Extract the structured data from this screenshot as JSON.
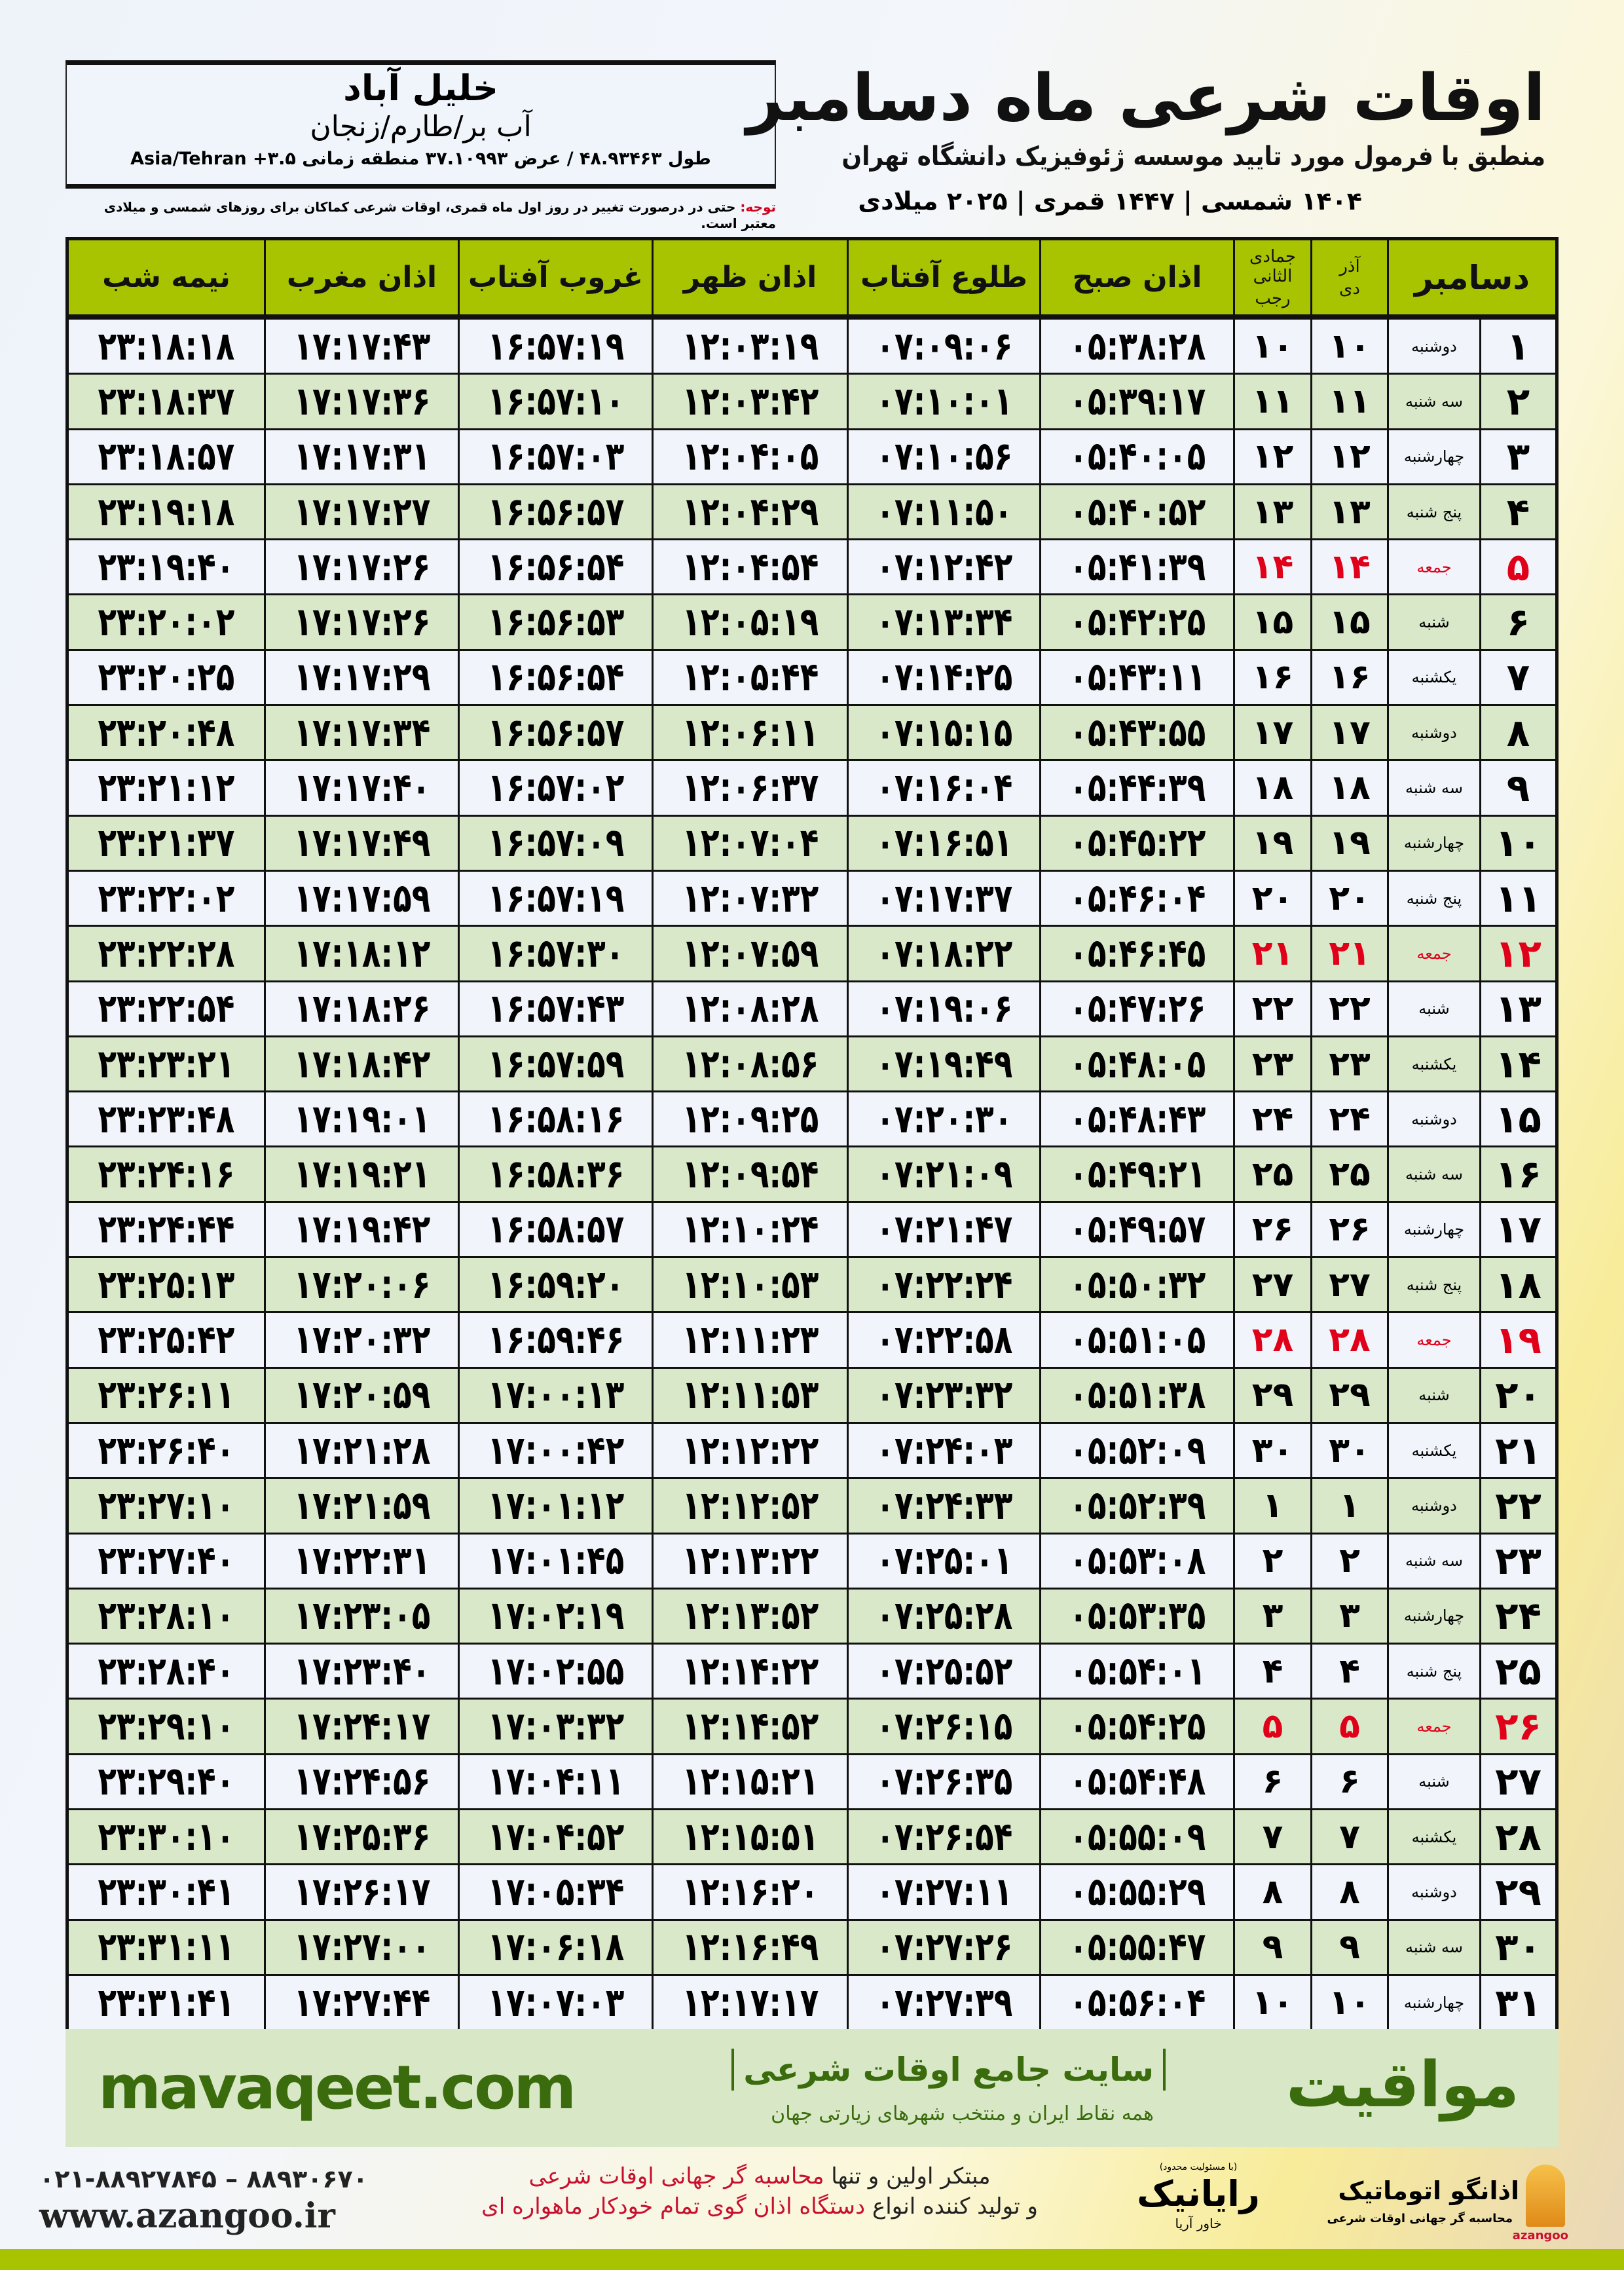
{
  "header": {
    "title": "اوقات شرعی ماه دسامبر",
    "subtitle": "منطبق با فرمول مورد تایید موسسه ژئوفیزیک دانشگاه تهران",
    "dates": "۱۴۰۴ شمسی | ۱۴۴۷ قمری | ۲۰۲۵ میلادی"
  },
  "location": {
    "city": "خلیل آباد",
    "region": "آب بر/طارم/زنجان",
    "coords": "طول ۴۸.۹۳۴۶۳ / عرض ۳۷.۱۰۹۹۳ منطقه زمانی ۳.۵+ Asia/Tehran"
  },
  "note": {
    "label": "توجه:",
    "text": " حتی در درصورت تغییر در روز اول ماه قمری، اوقات شرعی کماکان برای روزهای شمسی و میلادی معتبر است."
  },
  "table": {
    "headers": {
      "month": "دسامبر",
      "solar_1": "آذر",
      "solar_2": "دی",
      "hijri_1": "جمادی الثانی",
      "hijri_2": "رجب",
      "fajr": "اذان صبح",
      "sunrise": "طلوع آفتاب",
      "zuhr": "اذان ظهر",
      "sunset": "غروب آفتاب",
      "maghrib": "اذان مغرب",
      "midnight": "نیمه شب"
    },
    "highlight_color": "#e0001a",
    "rows": [
      [
        "۱",
        "دوشنبه",
        "۱۰",
        "۱۰",
        "۰۵:۳۸:۲۸",
        "۰۷:۰۹:۰۶",
        "۱۲:۰۳:۱۹",
        "۱۶:۵۷:۱۹",
        "۱۷:۱۷:۴۳",
        "۲۳:۱۸:۱۸"
      ],
      [
        "۲",
        "سه شنبه",
        "۱۱",
        "۱۱",
        "۰۵:۳۹:۱۷",
        "۰۷:۱۰:۰۱",
        "۱۲:۰۳:۴۲",
        "۱۶:۵۷:۱۰",
        "۱۷:۱۷:۳۶",
        "۲۳:۱۸:۳۷"
      ],
      [
        "۳",
        "چهارشنبه",
        "۱۲",
        "۱۲",
        "۰۵:۴۰:۰۵",
        "۰۷:۱۰:۵۶",
        "۱۲:۰۴:۰۵",
        "۱۶:۵۷:۰۳",
        "۱۷:۱۷:۳۱",
        "۲۳:۱۸:۵۷"
      ],
      [
        "۴",
        "پنج شنبه",
        "۱۳",
        "۱۳",
        "۰۵:۴۰:۵۲",
        "۰۷:۱۱:۵۰",
        "۱۲:۰۴:۲۹",
        "۱۶:۵۶:۵۷",
        "۱۷:۱۷:۲۷",
        "۲۳:۱۹:۱۸"
      ],
      [
        "۵",
        "جمعه",
        "۱۴",
        "۱۴",
        "۰۵:۴۱:۳۹",
        "۰۷:۱۲:۴۲",
        "۱۲:۰۴:۵۴",
        "۱۶:۵۶:۵۴",
        "۱۷:۱۷:۲۶",
        "۲۳:۱۹:۴۰"
      ],
      [
        "۶",
        "شنبه",
        "۱۵",
        "۱۵",
        "۰۵:۴۲:۲۵",
        "۰۷:۱۳:۳۴",
        "۱۲:۰۵:۱۹",
        "۱۶:۵۶:۵۳",
        "۱۷:۱۷:۲۶",
        "۲۳:۲۰:۰۲"
      ],
      [
        "۷",
        "یکشنبه",
        "۱۶",
        "۱۶",
        "۰۵:۴۳:۱۱",
        "۰۷:۱۴:۲۵",
        "۱۲:۰۵:۴۴",
        "۱۶:۵۶:۵۴",
        "۱۷:۱۷:۲۹",
        "۲۳:۲۰:۲۵"
      ],
      [
        "۸",
        "دوشنبه",
        "۱۷",
        "۱۷",
        "۰۵:۴۳:۵۵",
        "۰۷:۱۵:۱۵",
        "۱۲:۰۶:۱۱",
        "۱۶:۵۶:۵۷",
        "۱۷:۱۷:۳۴",
        "۲۳:۲۰:۴۸"
      ],
      [
        "۹",
        "سه شنبه",
        "۱۸",
        "۱۸",
        "۰۵:۴۴:۳۹",
        "۰۷:۱۶:۰۴",
        "۱۲:۰۶:۳۷",
        "۱۶:۵۷:۰۲",
        "۱۷:۱۷:۴۰",
        "۲۳:۲۱:۱۲"
      ],
      [
        "۱۰",
        "چهارشنبه",
        "۱۹",
        "۱۹",
        "۰۵:۴۵:۲۲",
        "۰۷:۱۶:۵۱",
        "۱۲:۰۷:۰۴",
        "۱۶:۵۷:۰۹",
        "۱۷:۱۷:۴۹",
        "۲۳:۲۱:۳۷"
      ],
      [
        "۱۱",
        "پنج شنبه",
        "۲۰",
        "۲۰",
        "۰۵:۴۶:۰۴",
        "۰۷:۱۷:۳۷",
        "۱۲:۰۷:۳۲",
        "۱۶:۵۷:۱۹",
        "۱۷:۱۷:۵۹",
        "۲۳:۲۲:۰۲"
      ],
      [
        "۱۲",
        "جمعه",
        "۲۱",
        "۲۱",
        "۰۵:۴۶:۴۵",
        "۰۷:۱۸:۲۲",
        "۱۲:۰۷:۵۹",
        "۱۶:۵۷:۳۰",
        "۱۷:۱۸:۱۲",
        "۲۳:۲۲:۲۸"
      ],
      [
        "۱۳",
        "شنبه",
        "۲۲",
        "۲۲",
        "۰۵:۴۷:۲۶",
        "۰۷:۱۹:۰۶",
        "۱۲:۰۸:۲۸",
        "۱۶:۵۷:۴۳",
        "۱۷:۱۸:۲۶",
        "۲۳:۲۲:۵۴"
      ],
      [
        "۱۴",
        "یکشنبه",
        "۲۳",
        "۲۳",
        "۰۵:۴۸:۰۵",
        "۰۷:۱۹:۴۹",
        "۱۲:۰۸:۵۶",
        "۱۶:۵۷:۵۹",
        "۱۷:۱۸:۴۲",
        "۲۳:۲۳:۲۱"
      ],
      [
        "۱۵",
        "دوشنبه",
        "۲۴",
        "۲۴",
        "۰۵:۴۸:۴۳",
        "۰۷:۲۰:۳۰",
        "۱۲:۰۹:۲۵",
        "۱۶:۵۸:۱۶",
        "۱۷:۱۹:۰۱",
        "۲۳:۲۳:۴۸"
      ],
      [
        "۱۶",
        "سه شنبه",
        "۲۵",
        "۲۵",
        "۰۵:۴۹:۲۱",
        "۰۷:۲۱:۰۹",
        "۱۲:۰۹:۵۴",
        "۱۶:۵۸:۳۶",
        "۱۷:۱۹:۲۱",
        "۲۳:۲۴:۱۶"
      ],
      [
        "۱۷",
        "چهارشنبه",
        "۲۶",
        "۲۶",
        "۰۵:۴۹:۵۷",
        "۰۷:۲۱:۴۷",
        "۱۲:۱۰:۲۴",
        "۱۶:۵۸:۵۷",
        "۱۷:۱۹:۴۲",
        "۲۳:۲۴:۴۴"
      ],
      [
        "۱۸",
        "پنج شنبه",
        "۲۷",
        "۲۷",
        "۰۵:۵۰:۳۲",
        "۰۷:۲۲:۲۴",
        "۱۲:۱۰:۵۳",
        "۱۶:۵۹:۲۰",
        "۱۷:۲۰:۰۶",
        "۲۳:۲۵:۱۳"
      ],
      [
        "۱۹",
        "جمعه",
        "۲۸",
        "۲۸",
        "۰۵:۵۱:۰۵",
        "۰۷:۲۲:۵۸",
        "۱۲:۱۱:۲۳",
        "۱۶:۵۹:۴۶",
        "۱۷:۲۰:۳۲",
        "۲۳:۲۵:۴۲"
      ],
      [
        "۲۰",
        "شنبه",
        "۲۹",
        "۲۹",
        "۰۵:۵۱:۳۸",
        "۰۷:۲۳:۳۲",
        "۱۲:۱۱:۵۳",
        "۱۷:۰۰:۱۳",
        "۱۷:۲۰:۵۹",
        "۲۳:۲۶:۱۱"
      ],
      [
        "۲۱",
        "یکشنبه",
        "۳۰",
        "۳۰",
        "۰۵:۵۲:۰۹",
        "۰۷:۲۴:۰۳",
        "۱۲:۱۲:۲۲",
        "۱۷:۰۰:۴۲",
        "۱۷:۲۱:۲۸",
        "۲۳:۲۶:۴۰"
      ],
      [
        "۲۲",
        "دوشنبه",
        "۱",
        "۱",
        "۰۵:۵۲:۳۹",
        "۰۷:۲۴:۳۳",
        "۱۲:۱۲:۵۲",
        "۱۷:۰۱:۱۲",
        "۱۷:۲۱:۵۹",
        "۲۳:۲۷:۱۰"
      ],
      [
        "۲۳",
        "سه شنبه",
        "۲",
        "۲",
        "۰۵:۵۳:۰۸",
        "۰۷:۲۵:۰۱",
        "۱۲:۱۳:۲۲",
        "۱۷:۰۱:۴۵",
        "۱۷:۲۲:۳۱",
        "۲۳:۲۷:۴۰"
      ],
      [
        "۲۴",
        "چهارشنبه",
        "۳",
        "۳",
        "۰۵:۵۳:۳۵",
        "۰۷:۲۵:۲۸",
        "۱۲:۱۳:۵۲",
        "۱۷:۰۲:۱۹",
        "۱۷:۲۳:۰۵",
        "۲۳:۲۸:۱۰"
      ],
      [
        "۲۵",
        "پنج شنبه",
        "۴",
        "۴",
        "۰۵:۵۴:۰۱",
        "۰۷:۲۵:۵۲",
        "۱۲:۱۴:۲۲",
        "۱۷:۰۲:۵۵",
        "۱۷:۲۳:۴۰",
        "۲۳:۲۸:۴۰"
      ],
      [
        "۲۶",
        "جمعه",
        "۵",
        "۵",
        "۰۵:۵۴:۲۵",
        "۰۷:۲۶:۱۵",
        "۱۲:۱۴:۵۲",
        "۱۷:۰۳:۳۲",
        "۱۷:۲۴:۱۷",
        "۲۳:۲۹:۱۰"
      ],
      [
        "۲۷",
        "شنبه",
        "۶",
        "۶",
        "۰۵:۵۴:۴۸",
        "۰۷:۲۶:۳۵",
        "۱۲:۱۵:۲۱",
        "۱۷:۰۴:۱۱",
        "۱۷:۲۴:۵۶",
        "۲۳:۲۹:۴۰"
      ],
      [
        "۲۸",
        "یکشنبه",
        "۷",
        "۷",
        "۰۵:۵۵:۰۹",
        "۰۷:۲۶:۵۴",
        "۱۲:۱۵:۵۱",
        "۱۷:۰۴:۵۲",
        "۱۷:۲۵:۳۶",
        "۲۳:۳۰:۱۰"
      ],
      [
        "۲۹",
        "دوشنبه",
        "۸",
        "۸",
        "۰۵:۵۵:۲۹",
        "۰۷:۲۷:۱۱",
        "۱۲:۱۶:۲۰",
        "۱۷:۰۵:۳۴",
        "۱۷:۲۶:۱۷",
        "۲۳:۳۰:۴۱"
      ],
      [
        "۳۰",
        "سه شنبه",
        "۹",
        "۹",
        "۰۵:۵۵:۴۷",
        "۰۷:۲۷:۲۶",
        "۱۲:۱۶:۴۹",
        "۱۷:۰۶:۱۸",
        "۱۷:۲۷:۰۰",
        "۲۳:۳۱:۱۱"
      ],
      [
        "۳۱",
        "چهارشنبه",
        "۱۰",
        "۱۰",
        "۰۵:۵۶:۰۴",
        "۰۷:۲۷:۳۹",
        "۱۲:۱۷:۱۷",
        "۱۷:۰۷:۰۳",
        "۱۷:۲۷:۴۴",
        "۲۳:۳۱:۴۱"
      ]
    ]
  },
  "band": {
    "logo": "مواقیت",
    "site": "سایت جامع اوقات شرعی",
    "sub": "همه نقاط ایران و منتخب شهرهای زیارتی جهان",
    "url": "mavaqeet.com",
    "color": "#3a6b0c"
  },
  "footer": {
    "phone": "۰۲۱-۸۸۹۲۷۸۴۵ – ۸۸۹۳۰۶۷۰",
    "url": "www.azangoo.ir",
    "line1_a": "مبتکر اولین و تنها ",
    "line1_b": "محاسبه گر جهانی اوقات شرعی",
    "line2_a": "و تولید کننده انواع ",
    "line2_b": "دستگاه اذان گوی تمام خودکار ماهواره ای",
    "rayanik": {
      "note": "(با مسئولیت محدود)",
      "name": "رایانیک",
      "sub": "خاور آریا"
    },
    "azangoo": {
      "name": "اذانگو اتوماتیک",
      "sub": "محاسبه گر جهانی اوقات شرعی",
      "brand": "azangoo"
    }
  }
}
